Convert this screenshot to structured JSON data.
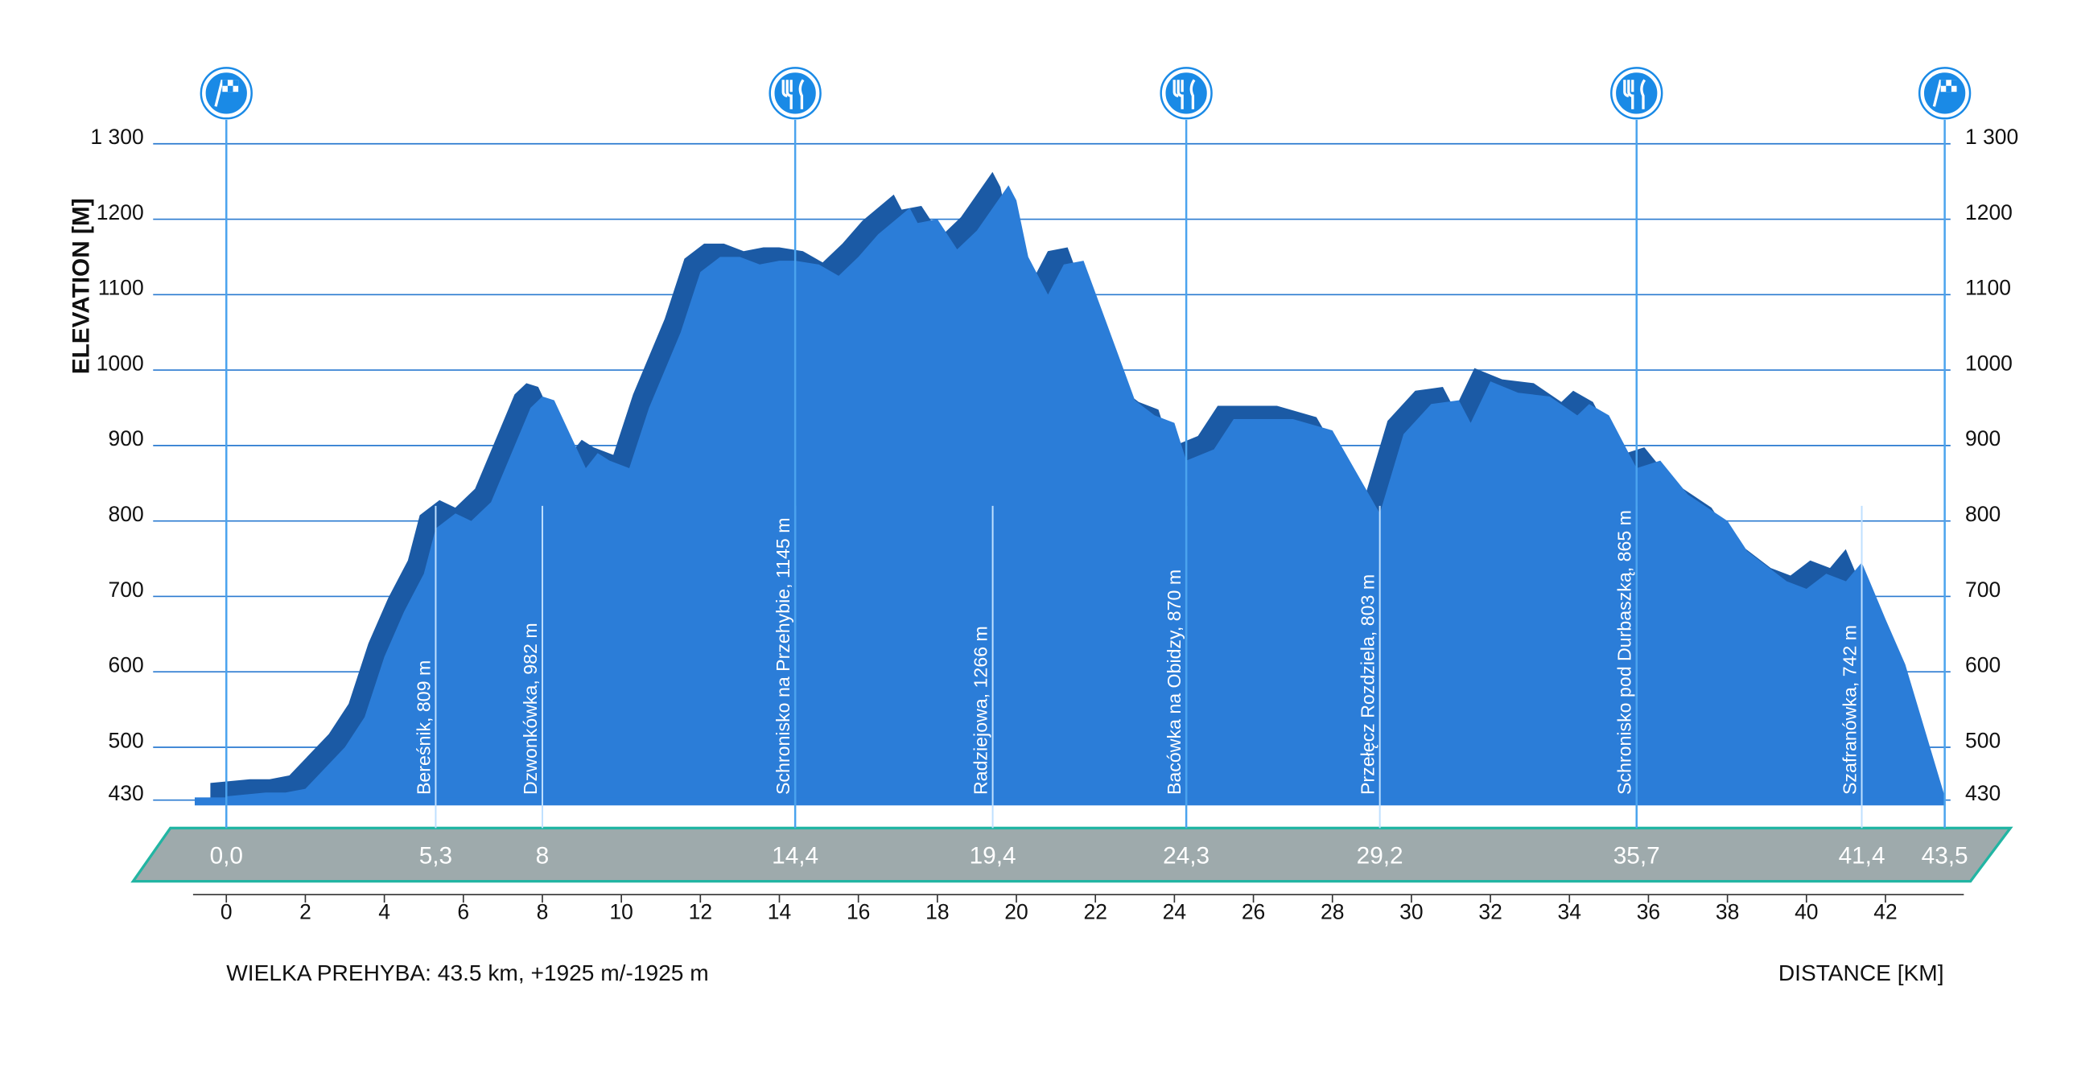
{
  "chart_data": {
    "type": "area",
    "title": "WIELKA PREHYBA: 43.5 km, +1925 m/-1925 m",
    "xlabel": "DISTANCE [KM]",
    "ylabel": "ELEVATION [M]",
    "color": "#2b7dd8",
    "shadow_color": "#1b5aa5",
    "x": [
      0,
      1,
      1.5,
      2,
      3,
      3.5,
      4,
      4.5,
      5,
      5.3,
      5.8,
      6.2,
      6.7,
      7.3,
      7.7,
      8,
      8.3,
      9.1,
      9.4,
      9.7,
      10.2,
      10.7,
      11.5,
      12,
      12.5,
      13,
      13.5,
      14,
      14.4,
      15,
      15.5,
      16,
      16.5,
      17.3,
      17.5,
      18,
      18.5,
      19,
      19.4,
      19.8,
      20,
      20.3,
      20.8,
      21.2,
      21.7,
      22.3,
      23,
      23.5,
      24,
      24.3,
      25,
      25.5,
      27,
      28,
      29.2,
      29.8,
      30.5,
      31.2,
      31.5,
      32,
      32.7,
      33.5,
      34.2,
      34.5,
      35,
      35.7,
      36.3,
      37,
      38,
      38.5,
      39.5,
      40,
      40.5,
      41,
      41.4,
      42,
      42.5,
      43.5
    ],
    "values": [
      435,
      440,
      440,
      445,
      500,
      540,
      620,
      680,
      730,
      790,
      810,
      800,
      825,
      900,
      950,
      965,
      960,
      870,
      890,
      880,
      870,
      950,
      1050,
      1130,
      1150,
      1150,
      1140,
      1145,
      1145,
      1140,
      1125,
      1150,
      1180,
      1215,
      1195,
      1200,
      1160,
      1185,
      1215,
      1245,
      1225,
      1150,
      1100,
      1140,
      1145,
      1060,
      960,
      940,
      930,
      880,
      895,
      935,
      935,
      920,
      810,
      915,
      955,
      960,
      930,
      985,
      970,
      965,
      940,
      955,
      940,
      870,
      880,
      835,
      800,
      760,
      720,
      710,
      730,
      720,
      745,
      670,
      610,
      435
    ],
    "ylim": [
      430,
      1300
    ],
    "yticks": [
      {
        "value": 1300,
        "label": "1 300"
      },
      1200,
      1100,
      1000,
      900,
      800,
      700,
      600,
      500,
      430
    ],
    "xlim": [
      -0.8,
      44
    ],
    "xticks": [
      0,
      2,
      4,
      6,
      8,
      10,
      12,
      14,
      16,
      18,
      20,
      22,
      24,
      26,
      28,
      30,
      32,
      34,
      36,
      38,
      40,
      42
    ],
    "distance_marks": [
      {
        "value": 0,
        "label": "0,0"
      },
      {
        "value": 5.3,
        "label": "5,3"
      },
      8,
      {
        "value": 14.4,
        "label": "14,4"
      },
      {
        "value": 19.4,
        "label": "19,4"
      },
      {
        "value": 24.3,
        "label": "24,3"
      },
      {
        "value": 29.2,
        "label": "29,2"
      },
      {
        "value": 35.7,
        "label": "35,7"
      },
      {
        "value": 41.4,
        "label": "41,4"
      },
      {
        "value": 43.5,
        "label": "43,5"
      }
    ],
    "waypoints": [
      {
        "x": 5.3,
        "label": "Bereśnik, 809 m"
      },
      {
        "x": 8,
        "label": "Dzwonkówka, 982 m"
      },
      {
        "x": 14.4,
        "label": "Schronisko na Przehybie, 1145 m"
      },
      {
        "x": 19.4,
        "label": "Radziejowa, 1266 m"
      },
      {
        "x": 24.3,
        "label": "Bacówka na Obidzy, 870 m"
      },
      {
        "x": 29.2,
        "label": "Przełęcz Rozdziela, 803 m"
      },
      {
        "x": 35.7,
        "label": "Schronisko pod Durbaszką, 865 m"
      },
      {
        "x": 41.4,
        "label": "Szafranówka, 742 m"
      }
    ],
    "stops": [
      {
        "x": 0,
        "kind": "flag"
      },
      {
        "x": 14.4,
        "kind": "food"
      },
      {
        "x": 24.3,
        "kind": "food"
      },
      {
        "x": 35.7,
        "kind": "food"
      },
      {
        "x": 43.5,
        "kind": "flag"
      }
    ]
  }
}
